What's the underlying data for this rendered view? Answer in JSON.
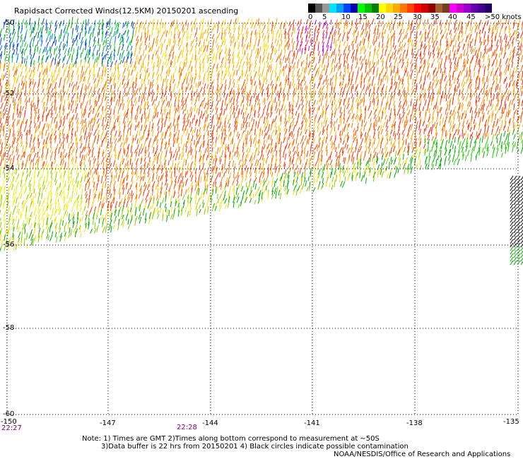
{
  "title": "Rapidsact Corrected Winds(12.5KM) 20150201 ascending",
  "legend": {
    "colors": [
      "#000000",
      "#555555",
      "#999999",
      "#00e5ff",
      "#00a0ff",
      "#0040ff",
      "#0000b0",
      "#00ff00",
      "#00c000",
      "#008000",
      "#ffff00",
      "#ffd700",
      "#ffaa00",
      "#ff7700",
      "#ff4000",
      "#ff0000",
      "#d00000",
      "#900000",
      "#a06030",
      "#704020",
      "#ff00ff",
      "#cc00cc",
      "#9900cc",
      "#6600aa",
      "#440088",
      "#220066"
    ],
    "labels": [
      "0",
      "5",
      "10",
      "15",
      "20",
      "25",
      "30",
      "35",
      "40",
      "45",
      ">50 knots"
    ]
  },
  "axes": {
    "lat_labels": [
      "-50",
      "-52",
      "-54",
      "-56",
      "-58",
      "-60"
    ],
    "lon_labels": [
      "-150",
      "-147",
      "-144",
      "-141",
      "-138",
      "-135"
    ]
  },
  "times": [
    "22:27",
    "22:28"
  ],
  "notes": [
    "Note: 1) Times are GMT 2)Times along bottom correspond to measurement at ~50S",
    "3)Data buffer is 22 hrs from 20150201 4) Black circles indicate possible contamination"
  ],
  "credit": "NOAA/NESDIS/Office of Research and Applications"
}
